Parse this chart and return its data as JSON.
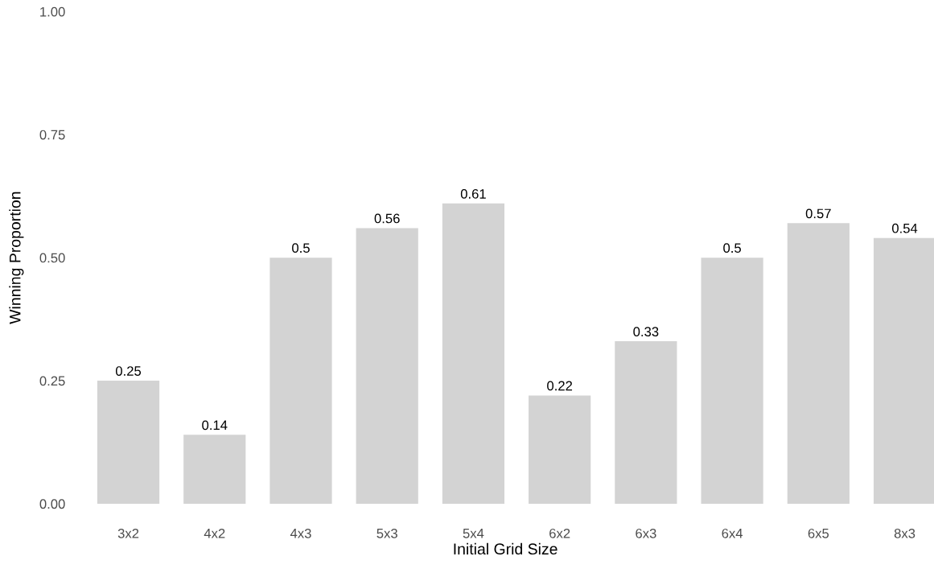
{
  "chart_data": {
    "type": "bar",
    "xlabel": "Initial Grid Size",
    "ylabel": "Winning Proportion",
    "categories": [
      "3x2",
      "4x2",
      "4x3",
      "5x3",
      "5x4",
      "6x2",
      "6x3",
      "6x4",
      "6x5",
      "8x3"
    ],
    "values": [
      0.25,
      0.14,
      0.5,
      0.56,
      0.61,
      0.22,
      0.33,
      0.5,
      0.57,
      0.54
    ],
    "color": "#d3d3d3",
    "ylim": [
      0,
      1
    ],
    "yticks": [
      {
        "value": 0,
        "label": "0.00"
      },
      {
        "value": 0.25,
        "label": "0.25"
      },
      {
        "value": 0.5,
        "label": "0.50"
      },
      {
        "value": 0.75,
        "label": "0.75"
      },
      {
        "value": 1,
        "label": "1.00"
      }
    ],
    "data_labels": true,
    "grid": false,
    "legend": false
  }
}
